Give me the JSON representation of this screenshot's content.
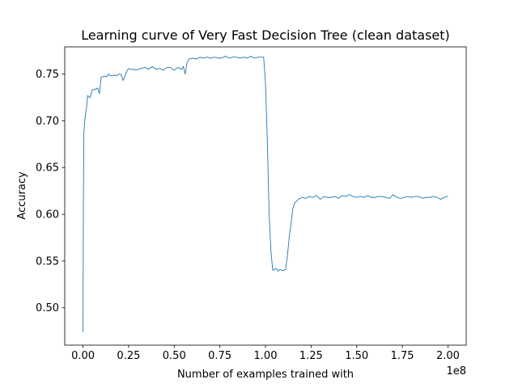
{
  "chart_data": {
    "type": "line",
    "title": "Learning curve of Very Fast Decision Tree (clean dataset)",
    "xlabel": "Number of examples trained with",
    "ylabel": "Accuracy",
    "x_offset_label": "1e8",
    "xlim": [
      -0.1,
      2.1
    ],
    "ylim": [
      0.46,
      0.779
    ],
    "x_ticks": [
      0.0,
      0.25,
      0.5,
      0.75,
      1.0,
      1.25,
      1.5,
      1.75,
      2.0
    ],
    "x_tick_labels": [
      "0.00",
      "0.25",
      "0.50",
      "0.75",
      "1.00",
      "1.25",
      "1.50",
      "1.75",
      "2.00"
    ],
    "y_ticks": [
      0.5,
      0.55,
      0.6,
      0.65,
      0.7,
      0.75
    ],
    "y_tick_labels": [
      "0.50",
      "0.55",
      "0.60",
      "0.65",
      "0.70",
      "0.75"
    ],
    "grid": false,
    "series": [
      {
        "color": "#1f77b4",
        "x": [
          0.0,
          0.002,
          0.005,
          0.01,
          0.015,
          0.02,
          0.025,
          0.03,
          0.035,
          0.04,
          0.05,
          0.06,
          0.07,
          0.08,
          0.09,
          0.1,
          0.11,
          0.12,
          0.13,
          0.14,
          0.15,
          0.16,
          0.17,
          0.18,
          0.19,
          0.2,
          0.21,
          0.22,
          0.23,
          0.24,
          0.25,
          0.26,
          0.27,
          0.28,
          0.29,
          0.3,
          0.32,
          0.34,
          0.36,
          0.38,
          0.4,
          0.42,
          0.44,
          0.46,
          0.48,
          0.5,
          0.52,
          0.54,
          0.55,
          0.56,
          0.57,
          0.58,
          0.6,
          0.62,
          0.64,
          0.66,
          0.68,
          0.7,
          0.72,
          0.74,
          0.76,
          0.78,
          0.8,
          0.82,
          0.84,
          0.86,
          0.88,
          0.9,
          0.92,
          0.94,
          0.96,
          0.98,
          0.99,
          1.0,
          1.01,
          1.02,
          1.03,
          1.04,
          1.05,
          1.06,
          1.07,
          1.08,
          1.09,
          1.1,
          1.11,
          1.12,
          1.13,
          1.14,
          1.15,
          1.16,
          1.18,
          1.2,
          1.22,
          1.24,
          1.26,
          1.28,
          1.3,
          1.32,
          1.34,
          1.36,
          1.38,
          1.4,
          1.42,
          1.44,
          1.46,
          1.48,
          1.5,
          1.52,
          1.54,
          1.56,
          1.58,
          1.6,
          1.62,
          1.64,
          1.66,
          1.68,
          1.7,
          1.72,
          1.74,
          1.76,
          1.78,
          1.8,
          1.82,
          1.84,
          1.86,
          1.88,
          1.9,
          1.92,
          1.94,
          1.96,
          1.98,
          1.99,
          2.0
        ],
        "y": [
          0.474,
          0.61,
          0.688,
          0.7,
          0.709,
          0.715,
          0.727,
          0.726,
          0.725,
          0.725,
          0.733,
          0.733,
          0.734,
          0.735,
          0.729,
          0.747,
          0.747,
          0.748,
          0.747,
          0.75,
          0.748,
          0.748,
          0.749,
          0.748,
          0.749,
          0.75,
          0.749,
          0.743,
          0.748,
          0.753,
          0.756,
          0.755,
          0.755,
          0.755,
          0.754,
          0.755,
          0.756,
          0.757,
          0.755,
          0.758,
          0.755,
          0.756,
          0.754,
          0.757,
          0.757,
          0.754,
          0.757,
          0.755,
          0.758,
          0.75,
          0.762,
          0.766,
          0.767,
          0.766,
          0.768,
          0.767,
          0.768,
          0.767,
          0.768,
          0.767,
          0.767,
          0.769,
          0.767,
          0.768,
          0.768,
          0.767,
          0.768,
          0.767,
          0.769,
          0.767,
          0.768,
          0.768,
          0.768,
          0.74,
          0.68,
          0.6,
          0.56,
          0.54,
          0.541,
          0.542,
          0.539,
          0.541,
          0.54,
          0.54,
          0.541,
          0.555,
          0.575,
          0.59,
          0.606,
          0.612,
          0.616,
          0.618,
          0.617,
          0.619,
          0.618,
          0.62,
          0.616,
          0.619,
          0.618,
          0.618,
          0.619,
          0.617,
          0.62,
          0.619,
          0.621,
          0.619,
          0.618,
          0.619,
          0.618,
          0.62,
          0.618,
          0.618,
          0.619,
          0.619,
          0.618,
          0.617,
          0.621,
          0.618,
          0.617,
          0.618,
          0.619,
          0.618,
          0.619,
          0.619,
          0.617,
          0.618,
          0.618,
          0.619,
          0.618,
          0.616,
          0.618,
          0.619,
          0.619
        ]
      }
    ]
  }
}
